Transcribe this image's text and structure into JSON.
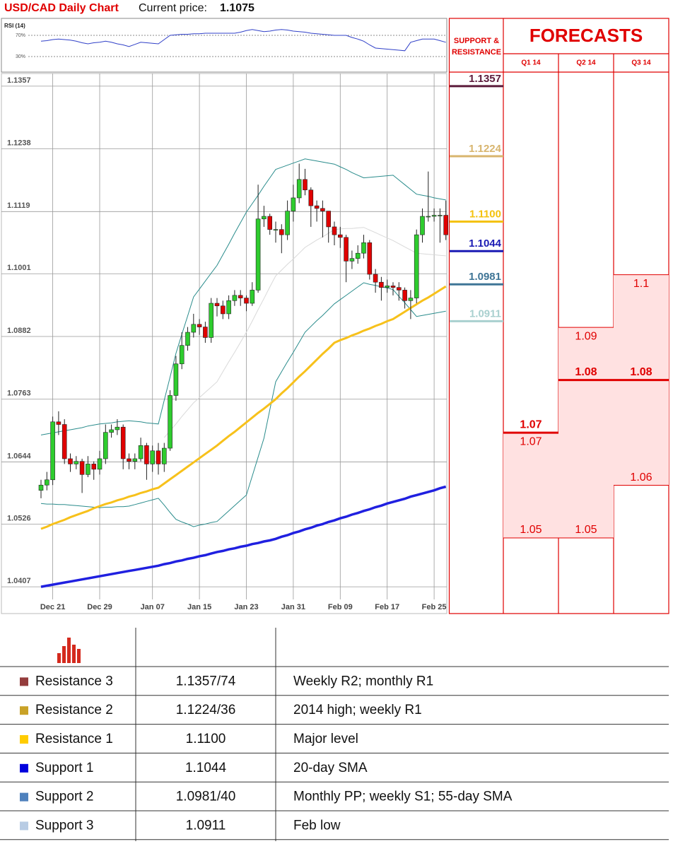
{
  "header": {
    "title": "USD/CAD Daily Chart",
    "price_label": "Current price:",
    "price": 1.1075
  },
  "chart_data": [
    {
      "type": "candlestick",
      "categories": [
        null,
        null,
        "Dec 21",
        null,
        null,
        null,
        null,
        null,
        null,
        null,
        "Dec 29",
        null,
        null,
        null,
        null,
        null,
        null,
        null,
        null,
        "Jan 07",
        null,
        null,
        null,
        null,
        null,
        null,
        null,
        "Jan 15",
        null,
        null,
        null,
        null,
        null,
        null,
        null,
        "Jan 23",
        null,
        null,
        null,
        null,
        null,
        null,
        null,
        "Jan 31",
        null,
        null,
        null,
        null,
        null,
        null,
        null,
        "Feb 09",
        null,
        null,
        null,
        null,
        null,
        null,
        null,
        "Feb 17",
        null,
        null,
        null,
        null,
        null,
        null,
        null,
        "Feb 25",
        null,
        null
      ],
      "open": [
        1.059,
        1.06,
        1.061,
        1.072,
        1.0715,
        1.065,
        1.064,
        1.0645,
        1.062,
        1.064,
        1.063,
        1.065,
        1.07,
        1.0705,
        1.071,
        1.065,
        1.0645,
        1.065,
        1.0675,
        1.064,
        1.0665,
        1.064,
        1.067,
        1.077,
        1.083,
        1.0865,
        1.089,
        1.0905,
        1.09,
        1.088,
        1.0945,
        1.094,
        1.0925,
        1.095,
        1.096,
        1.0955,
        1.0945,
        1.097,
        1.1105,
        1.111,
        1.1085,
        1.1085,
        1.1075,
        1.112,
        1.1145,
        1.118,
        1.116,
        1.113,
        1.1125,
        1.112,
        1.109,
        1.1075,
        1.107,
        1.1025,
        1.103,
        1.104,
        1.106,
        1.1,
        1.0985,
        1.0975,
        1.0978,
        1.0975,
        1.097,
        1.095,
        1.0955,
        1.1075,
        1.111,
        1.111,
        1.1112,
        1.1112
      ],
      "high": [
        1.061,
        1.0625,
        1.073,
        1.074,
        1.0725,
        1.066,
        1.0655,
        1.065,
        1.0655,
        1.0645,
        1.0665,
        1.0715,
        1.0715,
        1.0725,
        1.0715,
        1.066,
        1.066,
        1.069,
        1.068,
        1.0675,
        1.068,
        1.068,
        1.078,
        1.0845,
        1.089,
        1.09,
        1.0925,
        1.0915,
        1.091,
        1.0955,
        1.0955,
        1.095,
        1.096,
        1.097,
        1.097,
        1.096,
        1.0985,
        1.117,
        1.113,
        1.1115,
        1.11,
        1.1095,
        1.114,
        1.117,
        1.121,
        1.12,
        1.1165,
        1.114,
        1.114,
        1.112,
        1.11,
        1.109,
        1.1075,
        1.1045,
        1.1055,
        1.1075,
        1.1065,
        1.101,
        1.0995,
        1.099,
        1.0985,
        1.0985,
        1.0975,
        1.097,
        1.1085,
        1.1125,
        1.1195,
        1.1125,
        1.1125,
        1.114
      ],
      "low": [
        1.0575,
        1.059,
        1.06,
        1.0695,
        1.064,
        1.0625,
        1.063,
        1.0585,
        1.0615,
        1.061,
        1.062,
        1.064,
        1.069,
        1.0695,
        1.063,
        1.063,
        1.063,
        1.0645,
        1.061,
        1.0625,
        1.062,
        1.0625,
        1.0665,
        1.076,
        1.082,
        1.0855,
        1.088,
        1.0885,
        1.087,
        1.087,
        1.092,
        1.0915,
        1.0915,
        1.094,
        1.094,
        1.093,
        1.094,
        1.0965,
        1.109,
        1.1075,
        1.106,
        1.104,
        1.1065,
        1.11,
        1.1135,
        1.115,
        1.109,
        1.11,
        1.107,
        1.106,
        1.1055,
        1.105,
        1.0985,
        1.101,
        1.102,
        1.103,
        1.099,
        1.0965,
        1.095,
        1.0965,
        1.096,
        1.095,
        1.0935,
        1.0915,
        1.0945,
        1.106,
        1.11,
        1.11,
        1.106,
        1.1065
      ],
      "close": [
        1.06,
        1.061,
        1.072,
        1.0715,
        1.065,
        1.064,
        1.0645,
        1.062,
        1.064,
        1.063,
        1.065,
        1.07,
        1.0705,
        1.071,
        1.065,
        1.0645,
        1.065,
        1.0675,
        1.064,
        1.0665,
        1.064,
        1.067,
        1.077,
        1.083,
        1.0865,
        1.089,
        1.0905,
        1.09,
        1.088,
        1.0945,
        1.094,
        1.0925,
        1.095,
        1.096,
        1.0955,
        1.0945,
        1.097,
        1.1105,
        1.111,
        1.1085,
        1.1085,
        1.1075,
        1.112,
        1.1145,
        1.118,
        1.116,
        1.113,
        1.1125,
        1.112,
        1.109,
        1.1075,
        1.107,
        1.1025,
        1.103,
        1.104,
        1.106,
        1.1,
        1.0985,
        1.0975,
        1.0978,
        1.0975,
        1.097,
        1.095,
        1.0955,
        1.1075,
        1.111,
        1.111,
        1.1112,
        1.1112,
        1.1075
      ],
      "up_color": "#2ecc2e",
      "down_color": "#e00000",
      "series": [
        {
          "color": "#d9d9d9",
          "values": [
            null,
            null,
            null,
            null,
            null,
            null,
            null,
            null,
            null,
            null,
            null,
            null,
            null,
            null,
            null,
            null,
            null,
            null,
            null,
            null,
            null,
            1.069,
            1.0703,
            1.0716,
            1.073,
            1.0743,
            1.0756,
            1.0766,
            1.0776,
            1.0786,
            1.0796,
            1.0815,
            1.0834,
            1.0852,
            1.0871,
            1.089,
            1.0911,
            1.0933,
            1.0954,
            1.0976,
            1.0997,
            1.1008,
            1.1019,
            1.1029,
            1.104,
            1.1051,
            1.1058,
            1.1065,
            1.1071,
            1.1078,
            1.1085,
            1.1086,
            1.1087,
            1.1087,
            1.1088,
            1.1089,
            1.1084,
            1.1079,
            1.1074,
            1.1069,
            1.1064,
            1.1058,
            1.1052,
            1.1046,
            1.104,
            1.1039,
            1.1038,
            1.1037,
            1.1036,
            1.1035
          ]
        },
        {
          "color": "#2a8c8c",
          "values": [
            1.0695,
            1.0697,
            1.0699,
            1.0701,
            1.0703,
            1.0705,
            1.0707,
            1.0709,
            1.0712,
            1.0714,
            1.0716,
            1.0717,
            1.0718,
            1.072,
            1.0721,
            1.0722,
            1.0721,
            1.072,
            1.0718,
            1.0717,
            1.0716,
            1.0761,
            1.0805,
            1.085,
            1.0886,
            1.0921,
            1.0957,
            1.0972,
            1.0987,
            1.1002,
            1.1017,
            1.1037,
            1.1057,
            1.1078,
            1.1098,
            1.1118,
            1.1134,
            1.115,
            1.1167,
            1.1183,
            1.1199,
            1.1203,
            1.1207,
            1.1211,
            1.1215,
            1.1219,
            1.1217,
            1.1215,
            1.1213,
            1.1211,
            1.1209,
            1.1204,
            1.1199,
            1.1193,
            1.1188,
            1.1183,
            1.1184,
            1.1185,
            1.1186,
            1.1187,
            1.1188,
            1.1179,
            1.117,
            1.1161,
            1.1152,
            1.115,
            1.1148,
            1.1145,
            1.1143,
            1.1141
          ]
        },
        {
          "color": "#2a8c8c",
          "values": [
            1.0565,
            1.0564,
            1.0564,
            1.0563,
            1.0563,
            1.0562,
            1.0561,
            1.056,
            1.0559,
            1.0558,
            1.0557,
            1.0558,
            1.0558,
            1.0559,
            1.0559,
            1.056,
            1.0563,
            1.0566,
            1.0569,
            1.0572,
            1.0575,
            1.0562,
            1.0548,
            1.0535,
            1.053,
            1.0526,
            1.0521,
            1.0524,
            1.0526,
            1.0529,
            1.0531,
            1.0541,
            1.0551,
            1.0561,
            1.0571,
            1.0581,
            1.0617,
            1.0653,
            1.0689,
            1.0743,
            1.0796,
            1.0815,
            1.0834,
            1.0852,
            1.0871,
            1.089,
            1.0901,
            1.0912,
            1.0922,
            1.0933,
            1.0944,
            1.0952,
            1.096,
            1.0968,
            1.0976,
            1.0984,
            1.0981,
            1.0979,
            1.0976,
            1.0974,
            1.0971,
            1.0958,
            1.0946,
            1.0933,
            1.092,
            1.0922,
            1.0924,
            1.0926,
            1.0928,
            1.093
          ]
        },
        {
          "color": "#f7c11b",
          "values": [
            1.0517,
            1.0521,
            1.0526,
            1.053,
            1.0534,
            1.0539,
            1.0543,
            1.0547,
            1.0551,
            1.0556,
            1.056,
            1.0564,
            1.0567,
            1.0571,
            1.0574,
            1.0578,
            1.0581,
            1.0585,
            1.0588,
            1.0592,
            1.0595,
            1.0603,
            1.0611,
            1.0619,
            1.0627,
            1.0635,
            1.0643,
            1.0651,
            1.0659,
            1.0667,
            1.0675,
            1.0684,
            1.0693,
            1.0701,
            1.071,
            1.0719,
            1.0728,
            1.0737,
            1.0745,
            1.0754,
            1.0763,
            1.0774,
            1.0784,
            1.0795,
            1.0806,
            1.0816,
            1.0827,
            1.0838,
            1.0849,
            1.0859,
            1.087,
            1.0875,
            1.0879,
            1.0884,
            1.0888,
            1.0893,
            1.0897,
            1.0902,
            1.0906,
            1.0911,
            1.0915,
            1.0922,
            1.0929,
            1.0936,
            1.0943,
            1.095,
            1.0956,
            1.0963,
            1.097,
            1.0977
          ]
        },
        {
          "color": "#2020e0",
          "values": [
            1.0407,
            1.0409,
            1.0411,
            1.0413,
            1.0415,
            1.0417,
            1.0419,
            1.0421,
            1.0423,
            1.0425,
            1.0427,
            1.0429,
            1.0431,
            1.0433,
            1.0435,
            1.0437,
            1.0439,
            1.0441,
            1.0443,
            1.0445,
            1.0447,
            1.045,
            1.0452,
            1.0455,
            1.0457,
            1.046,
            1.0462,
            1.0465,
            1.0467,
            1.047,
            1.0473,
            1.0475,
            1.0478,
            1.048,
            1.0483,
            1.0485,
            1.0488,
            1.049,
            1.0493,
            1.0495,
            1.0498,
            1.0502,
            1.0505,
            1.0509,
            1.0512,
            1.0516,
            1.0519,
            1.0523,
            1.0526,
            1.053,
            1.0533,
            1.0537,
            1.054,
            1.0544,
            1.0547,
            1.0551,
            1.0554,
            1.0558,
            1.0561,
            1.0565,
            1.0568,
            1.0571,
            1.0574,
            1.0578,
            1.0581,
            1.0584,
            1.0587,
            1.059,
            1.0594,
            1.0597
          ]
        }
      ],
      "ylim": [
        1.0383,
        1.1381
      ],
      "yticks": [
        1.1357,
        1.1238,
        1.1119,
        1.1001,
        1.0882,
        1.0763,
        1.0644,
        1.0526,
        1.0407
      ],
      "grid": true,
      "levels_title": "SUPPORT & RESISTANCE",
      "levels": [
        {
          "value": 1.1357,
          "color": "#5c1b3b"
        },
        {
          "value": 1.1224,
          "color": "#d8b56e"
        },
        {
          "value": 1.11,
          "label": "1.1100",
          "color": "#f4c20d"
        },
        {
          "value": 1.1044,
          "color": "#1a1ab4"
        },
        {
          "value": 1.0981,
          "color": "#3f7596"
        },
        {
          "value": 1.0911,
          "color": "#a9d0cf"
        }
      ]
    },
    {
      "type": "line",
      "title": "RSI (14)",
      "values": [
        59,
        60,
        62,
        63,
        62,
        61,
        59,
        56,
        54,
        56,
        57,
        59,
        57,
        54,
        52,
        49,
        53,
        57,
        56,
        55,
        54,
        62,
        70,
        71,
        72,
        72,
        73,
        73,
        74,
        74,
        74,
        74,
        74,
        74,
        76,
        79,
        81,
        79,
        77,
        78,
        80,
        81,
        80,
        78,
        77,
        76,
        74,
        73,
        72,
        71,
        70,
        70,
        70,
        66,
        63,
        59,
        52,
        46,
        45,
        44,
        43,
        42,
        41,
        57,
        60,
        63,
        63,
        63,
        60,
        57
      ],
      "color": "#3040c8",
      "ylim": [
        0,
        100
      ],
      "yticks": [
        {
          "value": 70,
          "label": "70%"
        },
        {
          "value": 30,
          "label": "30%"
        }
      ]
    },
    {
      "type": "range",
      "title": "FORECASTS",
      "categories": [
        "Q1 14",
        "Q2 14",
        "Q3 14"
      ],
      "median": [
        1.07,
        1.08,
        1.08
      ],
      "high": [
        1.07,
        1.09,
        1.1
      ],
      "low": [
        1.05,
        1.05,
        1.06
      ],
      "color": "#e00000",
      "fill": "#ffe1e1",
      "ylim": [
        1.0359,
        1.1385
      ]
    }
  ],
  "table": {
    "rows": [
      {
        "color": "#943c3c",
        "name": "Resistance 3",
        "level": "1.1357/74",
        "note": "Weekly R2; monthly R1"
      },
      {
        "color": "#c9a227",
        "name": "Resistance 2",
        "level": "1.1224/36",
        "note": "2014 high; weekly R1"
      },
      {
        "color": "#ffcc00",
        "name": "Resistance 1",
        "level": "1.1100",
        "note": "Major level"
      },
      {
        "color": "#0000dd",
        "name": "Support 1",
        "level": "1.1044",
        "note": "20-day SMA"
      },
      {
        "color": "#4f81bd",
        "name": "Support 2",
        "level": "1.0981/40",
        "note": "Monthly PP; weekly S1; 55-day SMA"
      },
      {
        "color": "#b8cce4",
        "name": "Support 3",
        "level": "1.0911",
        "note": "Feb low"
      }
    ]
  }
}
